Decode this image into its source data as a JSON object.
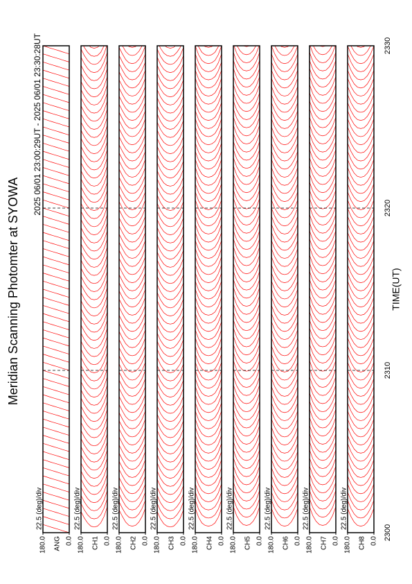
{
  "chart_data": {
    "type": "line",
    "title": "Meridian Scanning Photomter at SYOWA",
    "subtitle": "2025 06/01 23:00:29UT - 2025 06/01 23:30:28UT",
    "xlabel": "TIME(UT)",
    "xlim": [
      2300,
      2330
    ],
    "xticks": [
      2300,
      2310,
      2320,
      2330
    ],
    "ylim": [
      0,
      180
    ],
    "yticks": [
      {
        "value": 180,
        "label": "180.0"
      },
      {
        "value": 0,
        "label": "0.0"
      }
    ],
    "grid": true,
    "color": "#ff0000",
    "profile_angles": [
      0,
      22.5,
      45,
      67.5,
      90,
      112.5,
      135,
      157.5,
      180
    ],
    "x": [
      2300,
      2300.5,
      2301,
      2301.5,
      2302,
      2302.5,
      2303,
      2303.5,
      2304,
      2304.5,
      2305,
      2305.5,
      2306,
      2306.5,
      2307,
      2307.5,
      2308,
      2308.5,
      2309,
      2309.5,
      2310,
      2310.5,
      2311,
      2311.5,
      2312,
      2312.5,
      2313,
      2313.5,
      2314,
      2314.5,
      2315,
      2315.5,
      2316,
      2316.5,
      2317,
      2317.5,
      2318,
      2318.5,
      2319,
      2319.5,
      2320,
      2320.5,
      2321,
      2321.5,
      2322,
      2322.5,
      2323,
      2323.5,
      2324,
      2324.5,
      2325,
      2325.5,
      2326,
      2326.5,
      2327,
      2327.5,
      2328,
      2328.5,
      2329,
      2329.5
    ],
    "panels": [
      {
        "name": "ANG",
        "scale": "22.5 (deg)/div",
        "profile": [
          0,
          0.06,
          0.12,
          0.19,
          0.25,
          0.31,
          0.37,
          0.44,
          0.5
        ]
      },
      {
        "name": "CH1",
        "scale": "22.5 (deg)/div",
        "profile": [
          1.6,
          1.0,
          0.6,
          0.4,
          0.35,
          0.4,
          0.6,
          0.9,
          1.3
        ]
      },
      {
        "name": "CH2",
        "scale": "22.5 (deg)/div",
        "profile": [
          1.5,
          1.0,
          0.65,
          0.45,
          0.4,
          0.45,
          0.65,
          1.0,
          1.4
        ]
      },
      {
        "name": "CH3",
        "scale": "22.5 (deg)/div",
        "profile": [
          1.4,
          0.9,
          0.6,
          0.4,
          0.35,
          0.4,
          0.55,
          0.85,
          1.3
        ]
      },
      {
        "name": "CH4",
        "scale": "22.5 (deg)/div",
        "profile": [
          1.5,
          0.95,
          0.6,
          0.45,
          0.4,
          0.45,
          0.6,
          0.95,
          1.5
        ]
      },
      {
        "name": "CH5",
        "scale": "22.5 (deg)/div",
        "profile": [
          1.6,
          1.05,
          0.7,
          0.5,
          0.45,
          0.5,
          0.7,
          1.05,
          1.6
        ]
      },
      {
        "name": "CH6",
        "scale": "22.5 (deg)/div",
        "profile": [
          1.5,
          1.0,
          0.65,
          0.45,
          0.4,
          0.45,
          0.65,
          1.0,
          1.5
        ]
      },
      {
        "name": "CH7",
        "scale": "22.5 (deg)/div",
        "profile": [
          1.6,
          1.05,
          0.7,
          0.5,
          0.45,
          0.5,
          0.7,
          1.05,
          1.6
        ]
      },
      {
        "name": "CH8",
        "scale": "22.5 (deg)/div",
        "profile": [
          1.5,
          1.0,
          0.65,
          0.45,
          0.4,
          0.45,
          0.65,
          1.0,
          1.5
        ]
      }
    ]
  }
}
